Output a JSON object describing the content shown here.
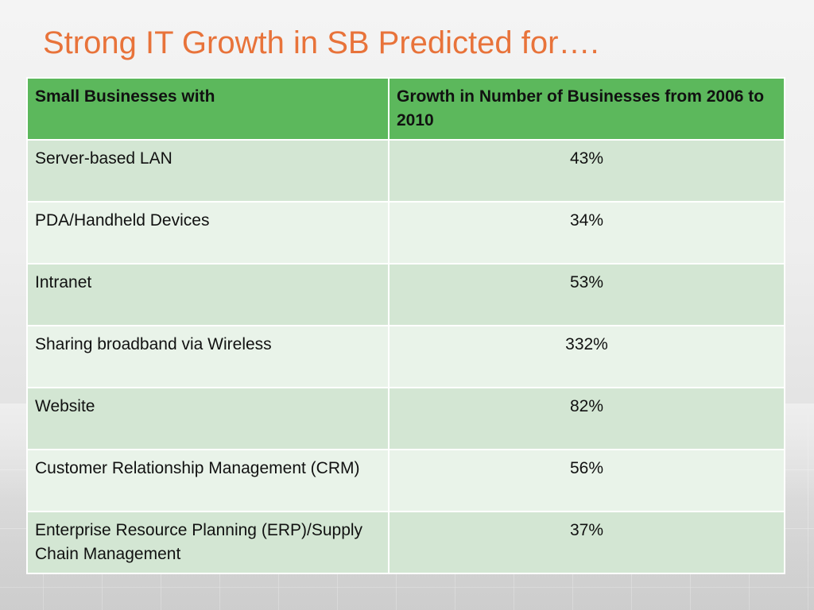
{
  "slide": {
    "title": "Strong IT Growth in SB Predicted for…."
  },
  "table": {
    "headers": [
      "Small Businesses with",
      "Growth in Number of Businesses from 2006 to 2010"
    ],
    "rows": [
      {
        "item": "Server-based LAN",
        "growth": "43%"
      },
      {
        "item": "PDA/Handheld Devices",
        "growth": "34%"
      },
      {
        "item": "Intranet",
        "growth": "53%"
      },
      {
        "item": "Sharing broadband via Wireless",
        "growth": "332%"
      },
      {
        "item": "Website",
        "growth": "82%"
      },
      {
        "item": "Customer Relationship Management (CRM)",
        "growth": "56%"
      },
      {
        "item": "Enterprise Resource Planning (ERP)/Supply Chain Management",
        "growth": "37%"
      }
    ]
  },
  "colors": {
    "title": "#e8733a",
    "header_bg": "#5cb85c",
    "row_dark": "#d3e6d3",
    "row_light": "#e9f3e9"
  }
}
